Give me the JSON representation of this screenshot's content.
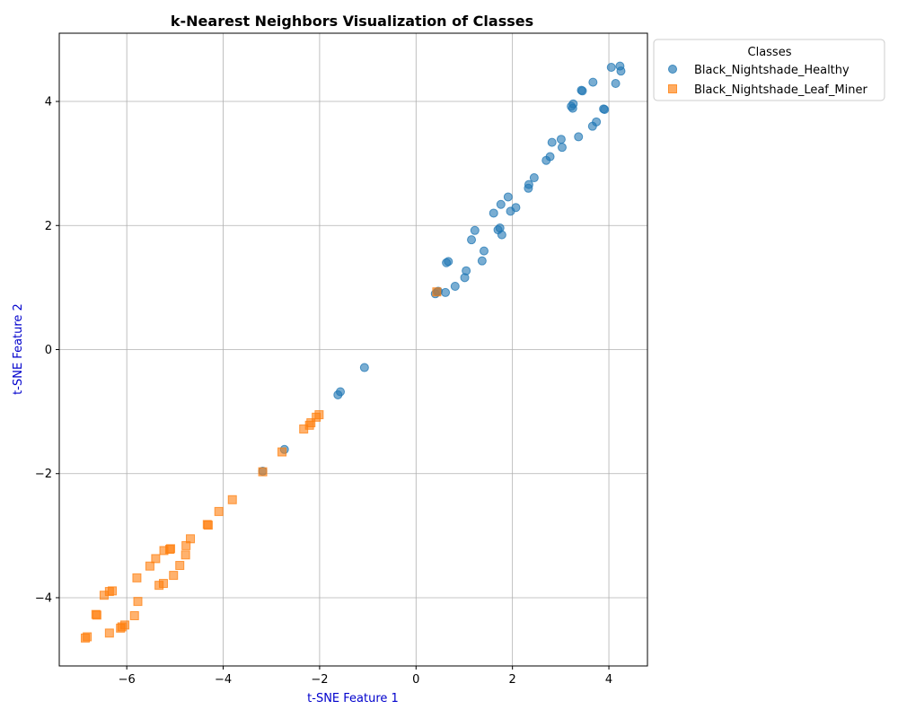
{
  "chart_data": {
    "type": "scatter",
    "title": "k-Nearest Neighbors Visualization of Classes",
    "xlabel": "t-SNE Feature 1",
    "ylabel": "t-SNE Feature 2",
    "xlim": [
      -7.4,
      4.8
    ],
    "ylim": [
      -5.1,
      5.1
    ],
    "xticks": [
      -6,
      -4,
      -2,
      0,
      2,
      4
    ],
    "yticks": [
      -4,
      -2,
      0,
      2,
      4
    ],
    "grid": true,
    "legend": {
      "title": "Classes",
      "placement": "outside-top-right"
    },
    "series": [
      {
        "name": "Black_Nightshade_Healthy",
        "color": "#1f77b4",
        "marker": "circle",
        "points": [
          [
            4.05,
            4.55
          ],
          [
            4.23,
            4.57
          ],
          [
            4.25,
            4.49
          ],
          [
            4.14,
            4.29
          ],
          [
            3.67,
            4.31
          ],
          [
            3.43,
            4.18
          ],
          [
            3.45,
            4.17
          ],
          [
            3.26,
            3.96
          ],
          [
            3.22,
            3.92
          ],
          [
            3.25,
            3.89
          ],
          [
            3.89,
            3.88
          ],
          [
            3.91,
            3.87
          ],
          [
            3.74,
            3.67
          ],
          [
            3.66,
            3.6
          ],
          [
            3.37,
            3.43
          ],
          [
            3.01,
            3.39
          ],
          [
            3.03,
            3.26
          ],
          [
            2.82,
            3.34
          ],
          [
            2.78,
            3.11
          ],
          [
            2.7,
            3.05
          ],
          [
            2.45,
            2.77
          ],
          [
            2.34,
            2.66
          ],
          [
            2.33,
            2.6
          ],
          [
            1.91,
            2.46
          ],
          [
            1.76,
            2.34
          ],
          [
            2.07,
            2.29
          ],
          [
            1.96,
            2.23
          ],
          [
            1.61,
            2.2
          ],
          [
            1.74,
            1.96
          ],
          [
            1.7,
            1.93
          ],
          [
            1.78,
            1.85
          ],
          [
            1.22,
            1.92
          ],
          [
            1.15,
            1.77
          ],
          [
            1.41,
            1.59
          ],
          [
            1.37,
            1.43
          ],
          [
            0.67,
            1.42
          ],
          [
            0.63,
            1.4
          ],
          [
            1.04,
            1.27
          ],
          [
            1.01,
            1.16
          ],
          [
            0.81,
            1.02
          ],
          [
            0.46,
            0.94
          ],
          [
            0.44,
            0.93
          ],
          [
            0.4,
            0.9
          ],
          [
            0.61,
            0.92
          ],
          [
            -1.07,
            -0.29
          ],
          [
            -1.57,
            -0.68
          ],
          [
            -1.62,
            -0.73
          ],
          [
            -2.73,
            -1.61
          ],
          [
            -3.18,
            -1.96
          ]
        ]
      },
      {
        "name": "Black_Nightshade_Leaf_Miner",
        "color": "#ff7f0e",
        "marker": "square",
        "points": [
          [
            0.43,
            0.93
          ],
          [
            -2.01,
            -1.05
          ],
          [
            -2.07,
            -1.09
          ],
          [
            -2.18,
            -1.18
          ],
          [
            -2.21,
            -1.22
          ],
          [
            -2.33,
            -1.28
          ],
          [
            -2.78,
            -1.65
          ],
          [
            -3.18,
            -1.97
          ],
          [
            -3.81,
            -2.42
          ],
          [
            -4.09,
            -2.61
          ],
          [
            -4.31,
            -2.83
          ],
          [
            -4.33,
            -2.82
          ],
          [
            -4.68,
            -3.05
          ],
          [
            -4.77,
            -3.16
          ],
          [
            -4.78,
            -3.31
          ],
          [
            -5.09,
            -3.21
          ],
          [
            -5.11,
            -3.22
          ],
          [
            -5.23,
            -3.24
          ],
          [
            -5.4,
            -3.37
          ],
          [
            -5.52,
            -3.49
          ],
          [
            -4.9,
            -3.48
          ],
          [
            -5.03,
            -3.64
          ],
          [
            -5.79,
            -3.68
          ],
          [
            -5.24,
            -3.77
          ],
          [
            -5.33,
            -3.8
          ],
          [
            -6.3,
            -3.89
          ],
          [
            -6.36,
            -3.9
          ],
          [
            -6.47,
            -3.96
          ],
          [
            -5.77,
            -4.06
          ],
          [
            -6.64,
            -4.27
          ],
          [
            -6.62,
            -4.28
          ],
          [
            -5.84,
            -4.29
          ],
          [
            -6.04,
            -4.44
          ],
          [
            -6.1,
            -4.47
          ],
          [
            -6.13,
            -4.49
          ],
          [
            -6.36,
            -4.57
          ],
          [
            -6.82,
            -4.63
          ],
          [
            -6.86,
            -4.65
          ]
        ]
      }
    ]
  }
}
